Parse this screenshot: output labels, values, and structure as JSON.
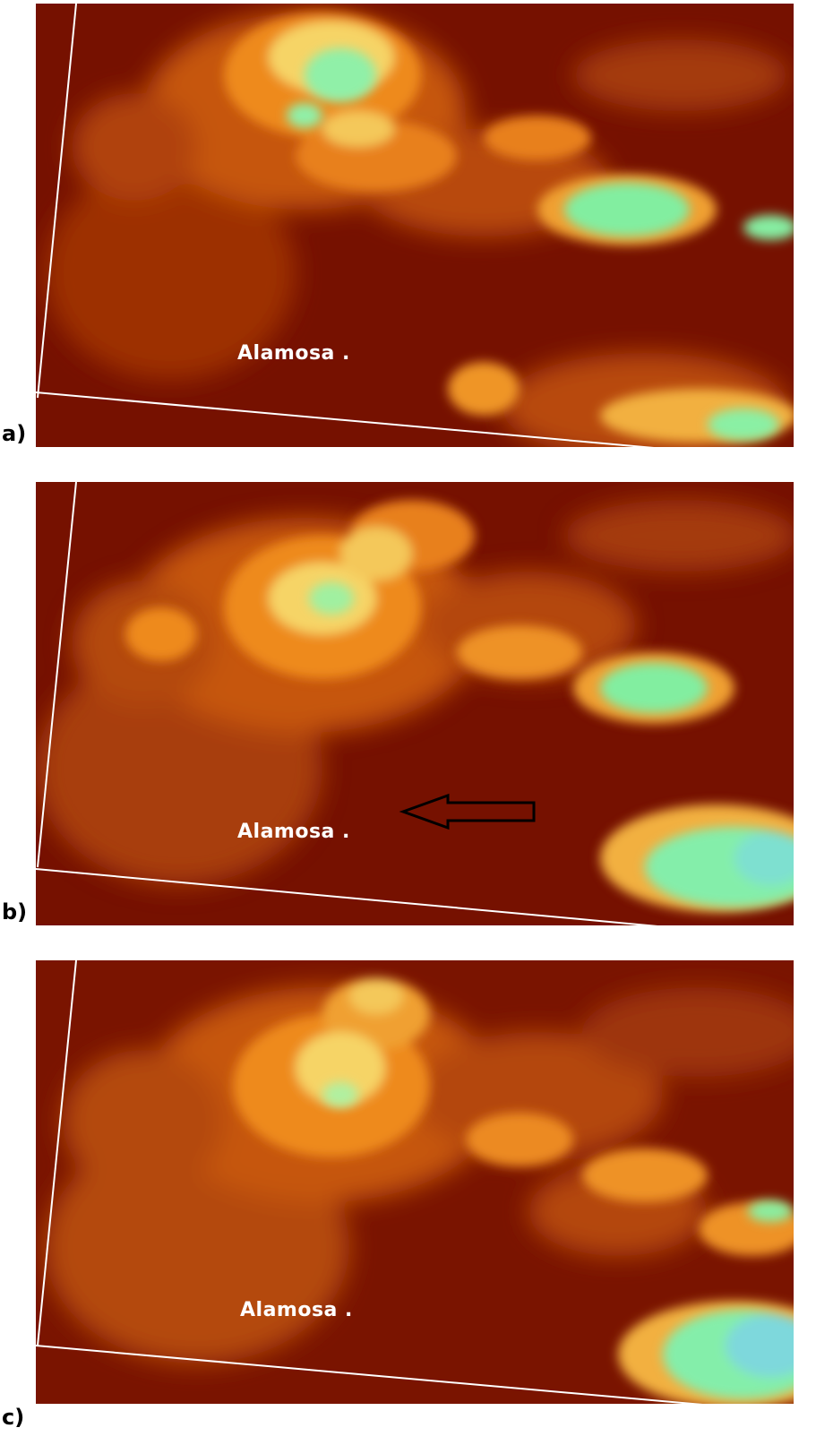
{
  "panels": [
    {
      "id": "a",
      "letter": "a)",
      "city_label": "Alamosa .",
      "has_arrow": false
    },
    {
      "id": "b",
      "letter": "b)",
      "city_label": "Alamosa .",
      "has_arrow": true
    },
    {
      "id": "c",
      "letter": "c)",
      "city_label": "Alamosa .",
      "has_arrow": false
    }
  ],
  "colors": {
    "background_dark": "#7a1200",
    "mid_orange": "#c2500a",
    "bright_orange": "#f08a1c",
    "yellow": "#f8d868",
    "green_cyan": "#80f0a0",
    "boundary_line": "#ffffff",
    "arrow": "#000000"
  }
}
